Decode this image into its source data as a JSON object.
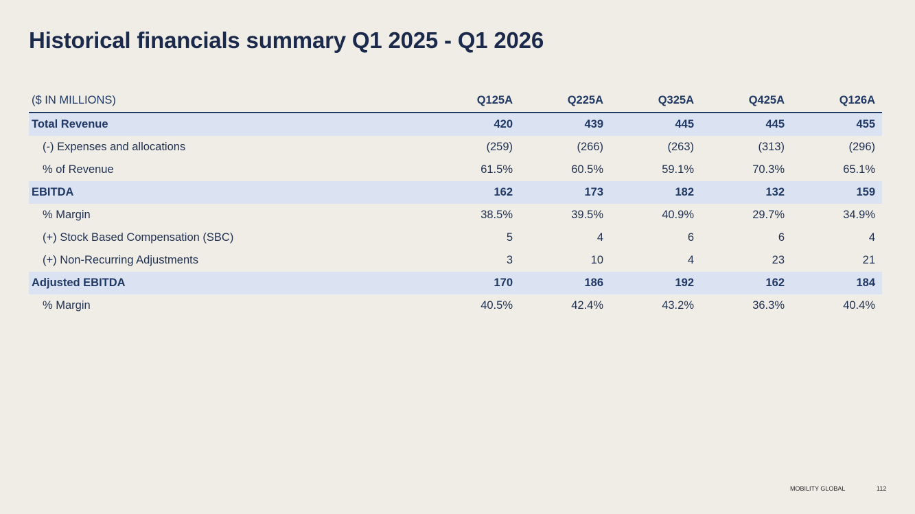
{
  "slide": {
    "title": "Historical financials summary Q1 2025 - Q1 2026"
  },
  "table": {
    "unit_label": "($ IN MILLIONS)",
    "periods": [
      "Q125A",
      "Q225A",
      "Q325A",
      "Q425A",
      "Q126A"
    ],
    "rows": [
      {
        "label": "Total Revenue",
        "style": "highlight",
        "values": [
          "420",
          "439",
          "445",
          "445",
          "455"
        ]
      },
      {
        "label": "(-) Expenses and allocations",
        "style": "sub",
        "values": [
          "(259)",
          "(266)",
          "(263)",
          "(313)",
          "(296)"
        ]
      },
      {
        "label": "% of Revenue",
        "style": "sub",
        "values": [
          "61.5%",
          "60.5%",
          "59.1%",
          "70.3%",
          "65.1%"
        ]
      },
      {
        "label": "EBITDA",
        "style": "highlight",
        "values": [
          "162",
          "173",
          "182",
          "132",
          "159"
        ]
      },
      {
        "label": "% Margin",
        "style": "sub",
        "values": [
          "38.5%",
          "39.5%",
          "40.9%",
          "29.7%",
          "34.9%"
        ]
      },
      {
        "label": "(+) Stock Based Compensation (SBC)",
        "style": "sub",
        "values": [
          "5",
          "4",
          "6",
          "6",
          "4"
        ]
      },
      {
        "label": "(+) Non-Recurring Adjustments",
        "style": "sub",
        "values": [
          "3",
          "10",
          "4",
          "23",
          "21"
        ]
      },
      {
        "label": "Adjusted EBITDA",
        "style": "highlight",
        "values": [
          "170",
          "186",
          "192",
          "162",
          "184"
        ]
      },
      {
        "label": "% Margin",
        "style": "sub",
        "values": [
          "40.5%",
          "42.4%",
          "43.2%",
          "36.3%",
          "40.4%"
        ]
      }
    ]
  },
  "footer": {
    "brand": "MOBILITY GLOBAL",
    "page_number": "112"
  },
  "colors": {
    "background": "#efede6",
    "title_navy": "#1b2a4a",
    "header_navy": "#1f3864",
    "highlight_row": "#dbe2f2"
  }
}
